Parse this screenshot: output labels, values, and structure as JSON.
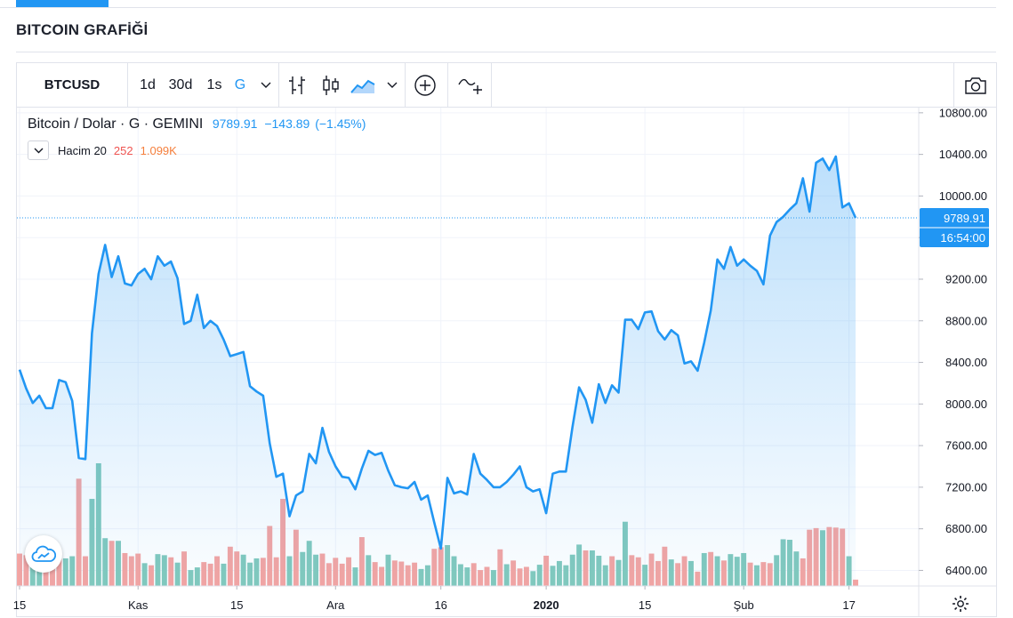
{
  "page": {
    "title": "BITCOIN GRAFİĞİ"
  },
  "toolbar": {
    "symbol": "BTCUSD",
    "intervals": [
      "1d",
      "30d",
      "1s",
      "G"
    ],
    "icons": [
      "bar-chart-icon",
      "candlestick-icon",
      "area-chart-icon",
      "add-indicator-icon",
      "compare-icon",
      "camera-icon"
    ]
  },
  "legend": {
    "series_name": "Bitcoin / Dolar · G · GEMINI",
    "last": "9789.91",
    "change": "−143.89",
    "change_pct": "(−1.45%)",
    "volume_name": "Hacim 20",
    "volume_value": "252",
    "volume_ma": "1.099K"
  },
  "price_label": {
    "value": "9789.91",
    "countdown": "16:54:00"
  },
  "colors": {
    "line": "#2196f3",
    "vol_up": "#82c9bd",
    "vol_down": "#f4a4a2",
    "price_tag": "#2196f3"
  },
  "chart_data": {
    "type": "area",
    "title": "Bitcoin / Dolar · G · GEMINI",
    "x_tick_labels": [
      "15",
      "Kas",
      "15",
      "Ara",
      "16",
      "2020",
      "15",
      "Şub",
      "17"
    ],
    "x_tick_index": [
      0,
      18,
      33,
      48,
      64,
      80,
      95,
      110,
      126
    ],
    "y_ticks": [
      6400,
      6800,
      7200,
      7600,
      8000,
      8400,
      8800,
      9200,
      9600,
      10000,
      10400,
      10800
    ],
    "ylim": [
      6250,
      10850
    ],
    "grid": true,
    "last_value": 9789.91,
    "close": [
      8330,
      8150,
      8010,
      8080,
      7960,
      7960,
      8230,
      8210,
      8030,
      7480,
      7470,
      8680,
      9250,
      9530,
      9220,
      9420,
      9160,
      9140,
      9250,
      9300,
      9200,
      9420,
      9330,
      9370,
      9210,
      8770,
      8800,
      9050,
      8730,
      8800,
      8750,
      8620,
      8460,
      8480,
      8500,
      8170,
      8120,
      8080,
      7620,
      7300,
      7330,
      6920,
      7120,
      7160,
      7520,
      7430,
      7770,
      7540,
      7400,
      7300,
      7290,
      7180,
      7380,
      7550,
      7510,
      7530,
      7360,
      7220,
      7200,
      7190,
      7250,
      7080,
      7120,
      6860,
      6610,
      7290,
      7140,
      7160,
      7130,
      7520,
      7330,
      7270,
      7200,
      7200,
      7250,
      7320,
      7400,
      7200,
      7160,
      7180,
      6950,
      7330,
      7350,
      7350,
      7780,
      8160,
      8040,
      7820,
      8190,
      8010,
      8180,
      8110,
      8810,
      8810,
      8720,
      8880,
      8890,
      8700,
      8620,
      8710,
      8660,
      8390,
      8410,
      8320,
      8590,
      8900,
      9390,
      9300,
      9510,
      9330,
      9390,
      9330,
      9280,
      9150,
      9620,
      9750,
      9800,
      9870,
      9930,
      10170,
      9850,
      10320,
      10360,
      10250,
      10380,
      9890,
      9930,
      9790
    ],
    "volume": [
      {
        "v": 610,
        "up": false
      },
      {
        "v": 580,
        "up": false
      },
      {
        "v": 420,
        "up": true
      },
      {
        "v": 520,
        "up": true
      },
      {
        "v": 530,
        "up": false
      },
      {
        "v": 560,
        "up": false
      },
      {
        "v": 510,
        "up": false
      },
      {
        "v": 520,
        "up": true
      },
      {
        "v": 560,
        "up": true
      },
      {
        "v": 2020,
        "up": false
      },
      {
        "v": 560,
        "up": false
      },
      {
        "v": 1640,
        "up": true
      },
      {
        "v": 2310,
        "up": true
      },
      {
        "v": 900,
        "up": true
      },
      {
        "v": 850,
        "up": false
      },
      {
        "v": 850,
        "up": true
      },
      {
        "v": 620,
        "up": false
      },
      {
        "v": 560,
        "up": false
      },
      {
        "v": 610,
        "up": false
      },
      {
        "v": 430,
        "up": true
      },
      {
        "v": 390,
        "up": false
      },
      {
        "v": 600,
        "up": true
      },
      {
        "v": 580,
        "up": true
      },
      {
        "v": 540,
        "up": false
      },
      {
        "v": 440,
        "up": true
      },
      {
        "v": 650,
        "up": false
      },
      {
        "v": 300,
        "up": true
      },
      {
        "v": 350,
        "up": true
      },
      {
        "v": 450,
        "up": false
      },
      {
        "v": 420,
        "up": false
      },
      {
        "v": 560,
        "up": false
      },
      {
        "v": 420,
        "up": true
      },
      {
        "v": 740,
        "up": false
      },
      {
        "v": 650,
        "up": false
      },
      {
        "v": 590,
        "up": true
      },
      {
        "v": 440,
        "up": true
      },
      {
        "v": 520,
        "up": true
      },
      {
        "v": 530,
        "up": false
      },
      {
        "v": 1130,
        "up": false
      },
      {
        "v": 540,
        "up": false
      },
      {
        "v": 1640,
        "up": false
      },
      {
        "v": 560,
        "up": true
      },
      {
        "v": 1060,
        "up": false
      },
      {
        "v": 640,
        "up": true
      },
      {
        "v": 850,
        "up": true
      },
      {
        "v": 590,
        "up": true
      },
      {
        "v": 610,
        "up": false
      },
      {
        "v": 430,
        "up": false
      },
      {
        "v": 530,
        "up": false
      },
      {
        "v": 420,
        "up": false
      },
      {
        "v": 540,
        "up": false
      },
      {
        "v": 350,
        "up": true
      },
      {
        "v": 920,
        "up": false
      },
      {
        "v": 580,
        "up": true
      },
      {
        "v": 450,
        "up": false
      },
      {
        "v": 360,
        "up": false
      },
      {
        "v": 590,
        "up": true
      },
      {
        "v": 480,
        "up": false
      },
      {
        "v": 460,
        "up": false
      },
      {
        "v": 390,
        "up": false
      },
      {
        "v": 440,
        "up": false
      },
      {
        "v": 320,
        "up": true
      },
      {
        "v": 390,
        "up": true
      },
      {
        "v": 700,
        "up": false
      },
      {
        "v": 730,
        "up": false
      },
      {
        "v": 770,
        "up": true
      },
      {
        "v": 560,
        "up": true
      },
      {
        "v": 410,
        "up": true
      },
      {
        "v": 350,
        "up": true
      },
      {
        "v": 430,
        "up": false
      },
      {
        "v": 300,
        "up": false
      },
      {
        "v": 360,
        "up": false
      },
      {
        "v": 300,
        "up": true
      },
      {
        "v": 690,
        "up": false
      },
      {
        "v": 410,
        "up": true
      },
      {
        "v": 480,
        "up": false
      },
      {
        "v": 330,
        "up": false
      },
      {
        "v": 360,
        "up": false
      },
      {
        "v": 280,
        "up": true
      },
      {
        "v": 400,
        "up": true
      },
      {
        "v": 570,
        "up": false
      },
      {
        "v": 380,
        "up": true
      },
      {
        "v": 470,
        "up": true
      },
      {
        "v": 390,
        "up": true
      },
      {
        "v": 590,
        "up": true
      },
      {
        "v": 780,
        "up": true
      },
      {
        "v": 670,
        "up": false
      },
      {
        "v": 670,
        "up": true
      },
      {
        "v": 570,
        "up": true
      },
      {
        "v": 390,
        "up": true
      },
      {
        "v": 560,
        "up": false
      },
      {
        "v": 490,
        "up": true
      },
      {
        "v": 1210,
        "up": true
      },
      {
        "v": 580,
        "up": false
      },
      {
        "v": 540,
        "up": false
      },
      {
        "v": 400,
        "up": true
      },
      {
        "v": 610,
        "up": false
      },
      {
        "v": 470,
        "up": false
      },
      {
        "v": 740,
        "up": false
      },
      {
        "v": 500,
        "up": true
      },
      {
        "v": 430,
        "up": false
      },
      {
        "v": 560,
        "up": false
      },
      {
        "v": 470,
        "up": true
      },
      {
        "v": 270,
        "up": false
      },
      {
        "v": 620,
        "up": true
      },
      {
        "v": 640,
        "up": false
      },
      {
        "v": 560,
        "up": true
      },
      {
        "v": 480,
        "up": false
      },
      {
        "v": 600,
        "up": true
      },
      {
        "v": 550,
        "up": true
      },
      {
        "v": 620,
        "up": true
      },
      {
        "v": 440,
        "up": false
      },
      {
        "v": 390,
        "up": true
      },
      {
        "v": 450,
        "up": false
      },
      {
        "v": 430,
        "up": false
      },
      {
        "v": 580,
        "up": true
      },
      {
        "v": 880,
        "up": true
      },
      {
        "v": 870,
        "up": true
      },
      {
        "v": 650,
        "up": true
      },
      {
        "v": 520,
        "up": false
      },
      {
        "v": 1060,
        "up": false
      },
      {
        "v": 1090,
        "up": false
      },
      {
        "v": 1050,
        "up": true
      },
      {
        "v": 1110,
        "up": false
      },
      {
        "v": 1100,
        "up": false
      },
      {
        "v": 1080,
        "up": false
      },
      {
        "v": 560,
        "up": true
      },
      {
        "v": 120,
        "up": false
      }
    ]
  }
}
